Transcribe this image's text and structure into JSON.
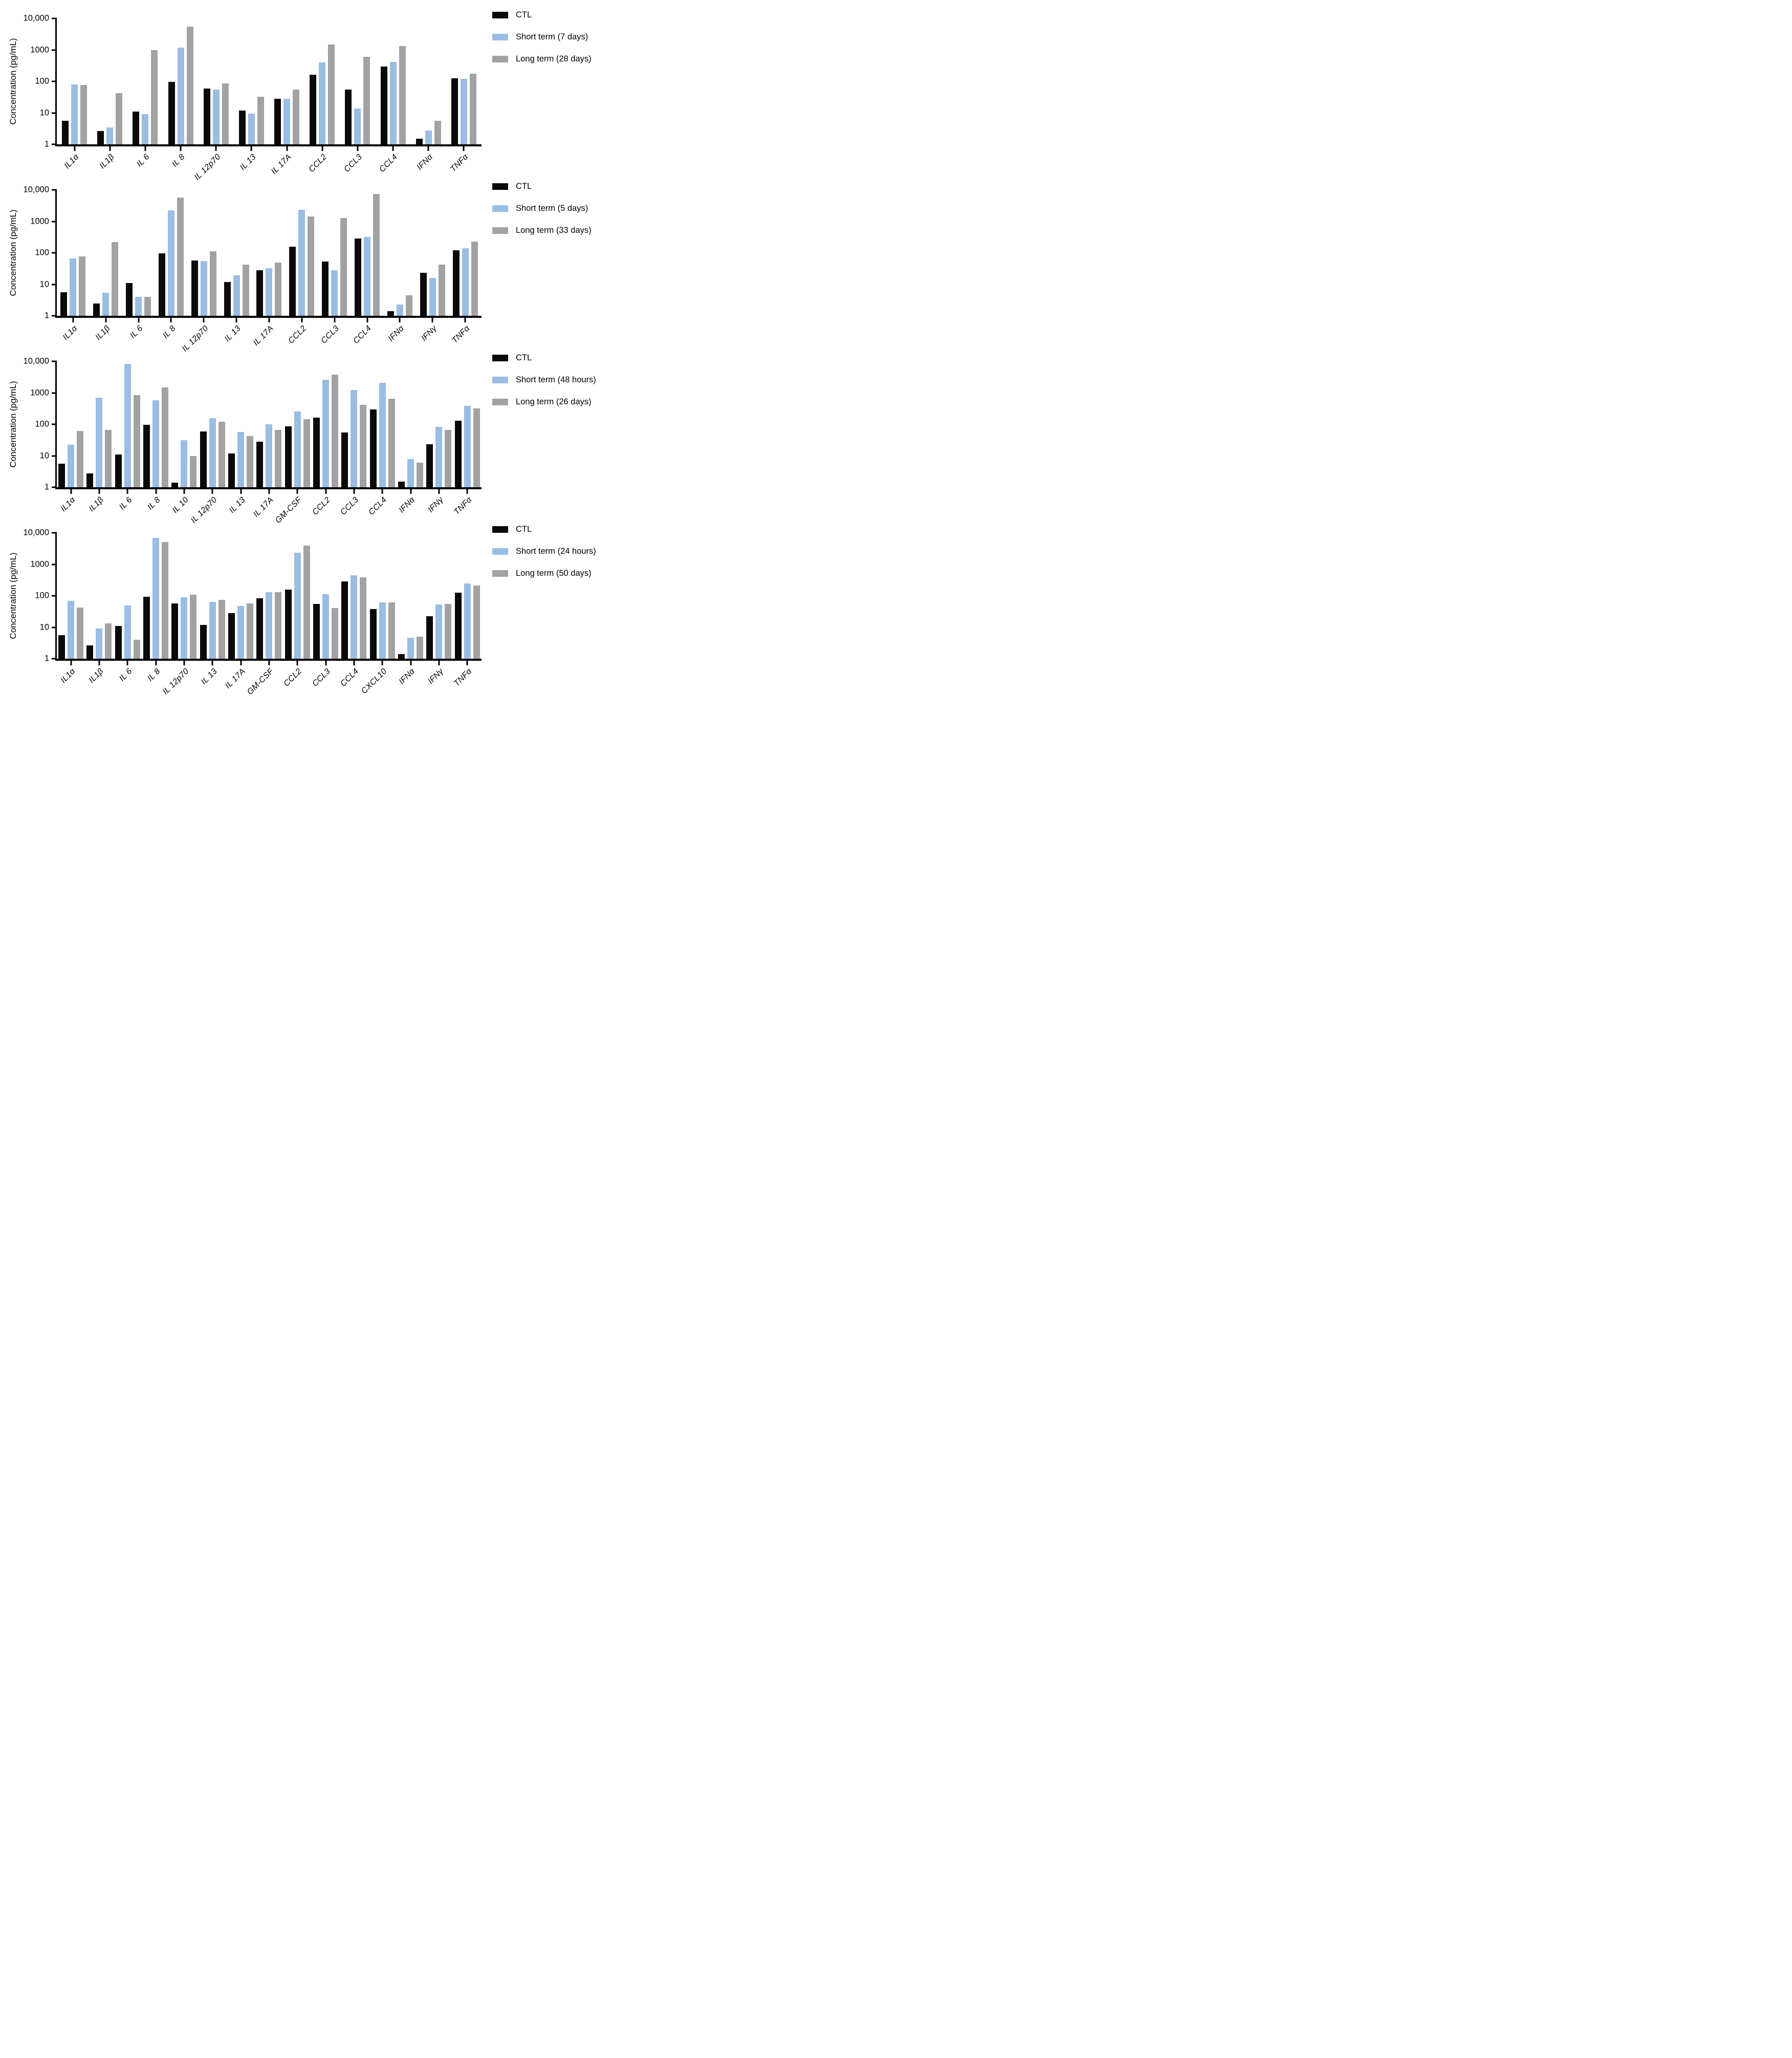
{
  "figure": {
    "y_axis_label": "Concentration (pg/mL)",
    "y_ticks": [
      "10,000",
      "1000",
      "100",
      "10",
      "1"
    ],
    "series_colors": [
      "#0a0a0a",
      "#9abde3",
      "#a2a2a4"
    ],
    "background": "#ffffff"
  },
  "chart_data": [
    {
      "type": "bar",
      "scale": "log",
      "ylabel": "Concentration (pg/mL)",
      "ylim": [
        1,
        10000
      ],
      "legend_position": "top-right",
      "grid": false,
      "categories": [
        "IL1α",
        "IL1β",
        "IL 6",
        "IL 8",
        "IL 12p70",
        "IL 13",
        "IL 17A",
        "CCL2",
        "CCL3",
        "CCL4",
        "IFNα",
        "TNFα"
      ],
      "series": [
        {
          "name": "CTL",
          "color": "#0a0a0a",
          "values": [
            5.7,
            2.6,
            11,
            95,
            60,
            12,
            28,
            160,
            55,
            300,
            1.5,
            125
          ]
        },
        {
          "name": "Short term (7 days)",
          "color": "#9abde3",
          "values": [
            80,
            3.4,
            9,
            1200,
            55,
            9.5,
            28,
            400,
            14,
            420,
            2.7,
            120
          ]
        },
        {
          "name": "Long term (28 days)",
          "color": "#a2a2a4",
          "values": [
            78,
            43,
            1000,
            5500,
            85,
            33,
            55,
            1480,
            610,
            1320,
            5.5,
            175
          ]
        }
      ]
    },
    {
      "type": "bar",
      "scale": "log",
      "ylabel": "Concentration (pg/mL)",
      "ylim": [
        1,
        10000
      ],
      "legend_position": "top-right",
      "grid": false,
      "categories": [
        "IL1α",
        "IL1β",
        "IL 6",
        "IL 8",
        "IL 12p70",
        "IL 13",
        "IL 17A",
        "CCL2",
        "CCL3",
        "CCL4",
        "IFNα",
        "IFNγ",
        "TNFα"
      ],
      "series": [
        {
          "name": "CTL",
          "color": "#0a0a0a",
          "values": [
            5.7,
            2.5,
            11,
            95,
            58,
            12,
            28,
            155,
            53,
            290,
            1.4,
            23,
            122
          ]
        },
        {
          "name": "Short term (5 days)",
          "color": "#9abde3",
          "values": [
            66,
            5.4,
            4,
            2200,
            54,
            19,
            32,
            2330,
            28,
            320,
            2.3,
            16,
            140
          ]
        },
        {
          "name": "Long term (33 days)",
          "color": "#a2a2a4",
          "values": [
            78,
            220,
            4,
            5800,
            112,
            42,
            50,
            1450,
            1260,
            7300,
            4.4,
            43,
            230
          ]
        }
      ]
    },
    {
      "type": "bar",
      "scale": "log",
      "ylabel": "Concentration (pg/mL)",
      "ylim": [
        1,
        10000
      ],
      "legend_position": "top-right",
      "grid": false,
      "categories": [
        "IL1α",
        "IL1β",
        "IL 6",
        "IL 8",
        "IL 10",
        "IL 12p70",
        "IL 13",
        "IL 17A",
        "GM-CSF",
        "CCL2",
        "CCL3",
        "CCL4",
        "IFNα",
        "IFNγ",
        "TNFα"
      ],
      "series": [
        {
          "name": "CTL",
          "color": "#0a0a0a",
          "values": [
            5.7,
            2.7,
            11,
            95,
            1.4,
            60,
            12,
            28,
            85,
            160,
            55,
            300,
            1.5,
            23,
            128
          ]
        },
        {
          "name": "Short term (48 hours)",
          "color": "#9abde3",
          "values": [
            22,
            700,
            8200,
            580,
            31,
            155,
            58,
            100,
            255,
            2600,
            1230,
            2050,
            7.8,
            82,
            385
          ]
        },
        {
          "name": "Long term (26 days)",
          "color": "#a2a2a4",
          "values": [
            62,
            67,
            850,
            1500,
            9.7,
            120,
            43,
            66,
            148,
            3800,
            410,
            640,
            6.1,
            67,
            315
          ]
        }
      ]
    },
    {
      "type": "bar",
      "scale": "log",
      "ylabel": "Concentration (pg/mL)",
      "ylim": [
        1,
        10000
      ],
      "legend_position": "top-right",
      "grid": false,
      "categories": [
        "IL1α",
        "IL1β",
        "IL 6",
        "IL 8",
        "IL 12p70",
        "IL 13",
        "IL 17A",
        "GM-CSF",
        "CCL2",
        "CCL3",
        "CCL4",
        "CXCL10",
        "IFNα",
        "IFNγ",
        "TNFα"
      ],
      "series": [
        {
          "name": "CTL",
          "color": "#0a0a0a",
          "values": [
            5.6,
            2.6,
            11,
            93,
            58,
            12,
            28,
            82,
            157,
            54,
            290,
            38,
            1.4,
            22,
            126
          ]
        },
        {
          "name": "Short term (24 hours)",
          "color": "#9abde3",
          "values": [
            69,
            9.1,
            50,
            6800,
            91,
            65,
            48,
            128,
            2300,
            110,
            450,
            62,
            4.7,
            53,
            242
          ]
        },
        {
          "name": "Long term (50 days)",
          "color": "#a2a2a4",
          "values": [
            42,
            13.5,
            4,
            5150,
            107,
            75,
            58,
            128,
            3900,
            41,
            380,
            62,
            5.0,
            54,
            215
          ]
        }
      ]
    }
  ]
}
